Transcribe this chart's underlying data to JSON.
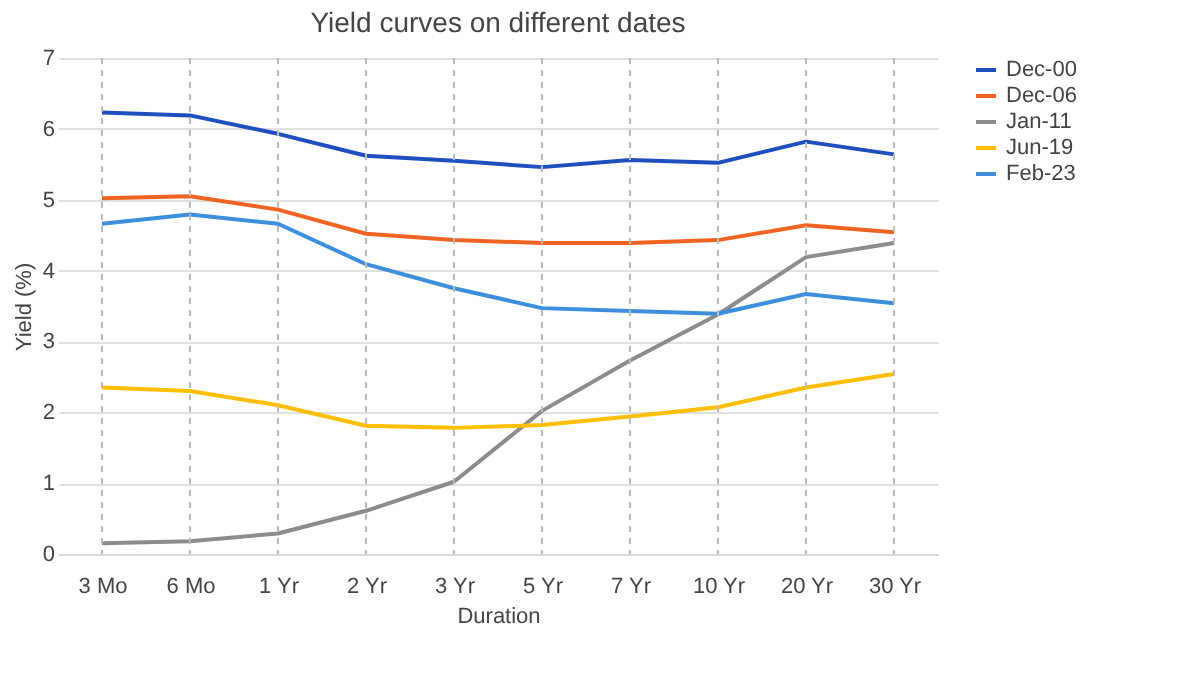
{
  "chart_data": {
    "type": "line",
    "title": "Yield curves on different dates",
    "xlabel": "Duration",
    "ylabel": "Yield (%)",
    "categories": [
      "3 Mo",
      "6 Mo",
      "1 Yr",
      "2 Yr",
      "3 Yr",
      "5 Yr",
      "7 Yr",
      "10 Yr",
      "20 Yr",
      "30 Yr"
    ],
    "series": [
      {
        "name": "Dec-00",
        "color": "#1f4fbf",
        "values": [
          6.23,
          6.19,
          5.93,
          5.62,
          5.55,
          5.46,
          5.56,
          5.52,
          5.82,
          5.64
        ]
      },
      {
        "name": "Dec-06",
        "color": "#ef6423",
        "values": [
          5.02,
          5.05,
          4.86,
          4.52,
          4.43,
          4.39,
          4.39,
          4.43,
          4.64,
          4.54
        ]
      },
      {
        "name": "Jan-11",
        "color": "#8c8c8c",
        "values": [
          0.15,
          0.18,
          0.29,
          0.61,
          1.02,
          2.02,
          2.73,
          3.38,
          4.19,
          4.39
        ]
      },
      {
        "name": "Jun-19",
        "color": "#ffbf00",
        "values": [
          2.35,
          2.3,
          2.1,
          1.81,
          1.78,
          1.82,
          1.94,
          2.07,
          2.35,
          2.54
        ]
      },
      {
        "name": "Feb-23",
        "color": "#3d8fdc",
        "values": [
          4.66,
          4.79,
          4.66,
          4.09,
          3.75,
          3.47,
          3.43,
          3.39,
          3.67,
          3.54
        ]
      }
    ],
    "ylim": [
      0,
      7
    ],
    "yticks": [
      0,
      1,
      2,
      3,
      4,
      5,
      6,
      7
    ],
    "grid": true,
    "legend": "right",
    "marker": "none",
    "line_style": "solid"
  }
}
